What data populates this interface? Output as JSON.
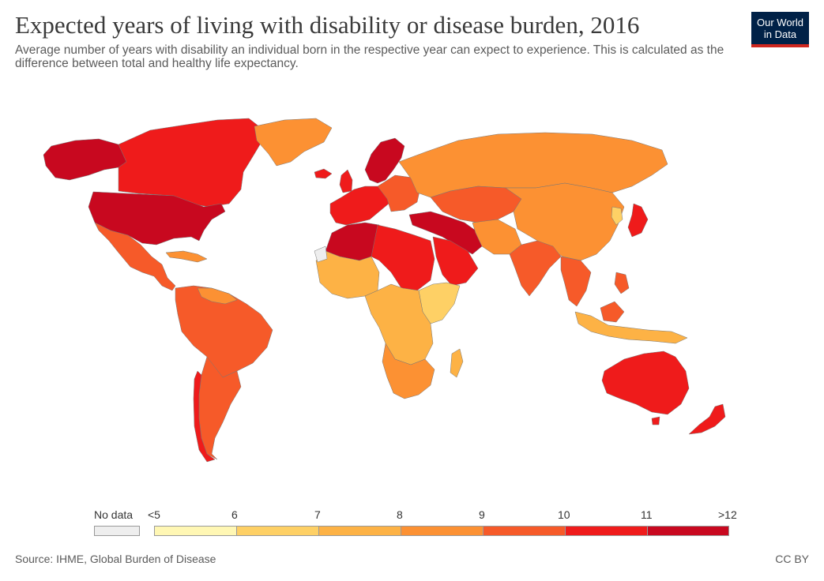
{
  "header": {
    "title": "Expected years of living with disability or disease burden, 2016",
    "subtitle": "Average number of years with disability an individual born in the respective year can expect to experience. This is calculated as the difference between total and healthy life expectancy."
  },
  "logo": {
    "line1": "Our World",
    "line2": "in Data",
    "bg_color": "#002147",
    "accent_color": "#ce261e"
  },
  "legend": {
    "no_data_label": "No data",
    "no_data_color": "#eeeeee",
    "bins": [
      {
        "from_label": "<5",
        "color": "#fff7b4"
      },
      {
        "from_label": "6",
        "color": "#fed065"
      },
      {
        "from_label": "7",
        "color": "#fdb245"
      },
      {
        "from_label": "8",
        "color": "#fc9133"
      },
      {
        "from_label": "9",
        "color": "#f65a29"
      },
      {
        "from_label": "10",
        "color": "#ef1b1b"
      },
      {
        "from_label": "11",
        "color": "#c8081f"
      }
    ],
    "end_label": ">12"
  },
  "footer": {
    "source": "Source: IHME, Global Burden of Disease",
    "license": "CC BY"
  }
}
